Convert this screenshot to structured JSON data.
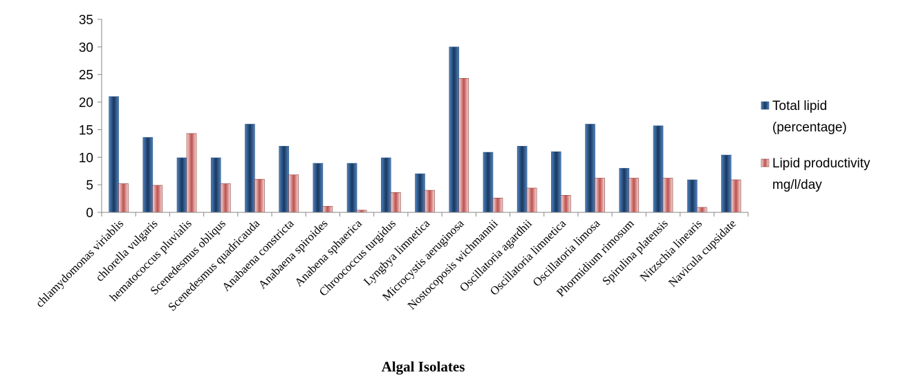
{
  "chart_data": {
    "type": "bar",
    "title": "",
    "xlabel": "Algal Isolates",
    "ylabel": "",
    "ylim": [
      0,
      35
    ],
    "yticks": [
      0,
      5,
      10,
      15,
      20,
      25,
      30,
      35
    ],
    "grid": false,
    "legend_position": "right",
    "categories": [
      "chlamydomonas viriablis",
      "chlorella vulgaris",
      "hematococcus pluvialis",
      "Scenedesmus obliqus",
      "Scenedesmus quadricauda",
      "Anabaena constricta",
      "Anabaena spiroides",
      "Anabena sphaerica",
      "Chroococcus turgidus",
      "Lyngbya limnetica",
      "Microcystis aeruginosa",
      "Nostocoposis wichmannii",
      "Oscillatoria agardhii",
      "Oscillatoria limnetica",
      "Oscillatoria limosa",
      "Phormidium rimosum",
      "Spirulina platensis",
      "Nitzschia linearis",
      "Navicula cupsidate"
    ],
    "series": [
      {
        "name": "Total lipid (percentage)",
        "legend_lines": [
          "Total lipid",
          "(percentage)"
        ],
        "color": "#4f81bd",
        "values": [
          21,
          13.6,
          9.9,
          9.9,
          16,
          12,
          8.9,
          8.9,
          9.9,
          7,
          30,
          10.9,
          12,
          11,
          16,
          8,
          15.7,
          5.9,
          10.4
        ]
      },
      {
        "name": "Lipid productivity mg/l/day",
        "legend_lines": [
          "Lipid productivity",
          "mg/l/day"
        ],
        "color": "#e6b9b8",
        "values": [
          5.2,
          4.9,
          14.3,
          5.2,
          6,
          6.8,
          1.1,
          0.4,
          3.6,
          4,
          24.3,
          2.6,
          4.4,
          3.1,
          6.2,
          6.2,
          6.2,
          0.9,
          5.9
        ]
      }
    ]
  }
}
